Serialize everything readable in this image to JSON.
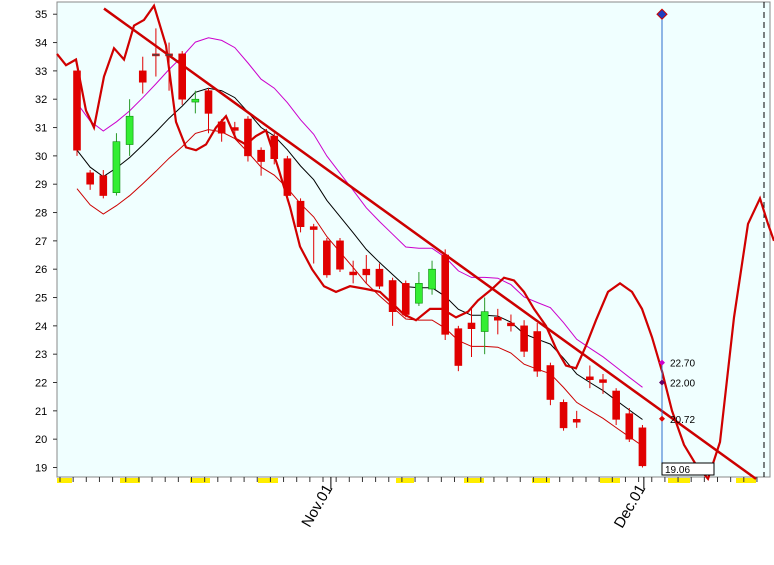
{
  "chart_data": {
    "type": "candlestick",
    "title": "",
    "xlabel": "",
    "ylabel": "",
    "ylim": [
      18.75,
      35.3
    ],
    "y_ticks": [
      19,
      20,
      21,
      22,
      23,
      24,
      25,
      26,
      27,
      28,
      29,
      30,
      31,
      32,
      33,
      34,
      35
    ],
    "x_tick_labels": [
      "Nov.01",
      "Dec.01"
    ],
    "grid": false,
    "colors": {
      "plot_bg": "#f0ffff",
      "bear": "#e00000",
      "bull": "#33ee33",
      "doji": "#444444",
      "envelope_upper": "#cc00cc",
      "envelope_lower": "#cc0000",
      "moving_average": "#000000",
      "cycle_line": "#d00000",
      "trendline": "#cc0000",
      "marker_line": "#2b6dcc",
      "marker": "#1f3fbf",
      "axis_highlight": "#ffee00"
    },
    "candles": [
      {
        "date": "Oct.06",
        "open": 33.0,
        "high": 33.0,
        "low": 30.0,
        "close": 30.2
      },
      {
        "date": "Oct.07",
        "open": 29.4,
        "high": 29.5,
        "low": 28.8,
        "close": 29.0
      },
      {
        "date": "Oct.08",
        "open": 29.3,
        "high": 29.5,
        "low": 28.5,
        "close": 28.6
      },
      {
        "date": "Oct.09",
        "open": 28.7,
        "high": 30.8,
        "low": 28.6,
        "close": 30.5
      },
      {
        "date": "Oct.10",
        "open": 30.4,
        "high": 32.0,
        "low": 30.0,
        "close": 31.4
      },
      {
        "date": "Oct.14",
        "open": 33.0,
        "high": 33.5,
        "low": 32.2,
        "close": 32.6
      },
      {
        "date": "Oct.15",
        "open": 33.6,
        "high": 34.5,
        "low": 32.8,
        "close": 33.6
      },
      {
        "date": "Oct.16",
        "open": 33.6,
        "high": 34.0,
        "low": 32.3,
        "close": 33.6
      },
      {
        "date": "Oct.17",
        "open": 33.6,
        "high": 33.7,
        "low": 31.8,
        "close": 32.0
      },
      {
        "date": "Oct.20",
        "open": 31.9,
        "high": 32.3,
        "low": 31.5,
        "close": 32.0
      },
      {
        "date": "Oct.21",
        "open": 32.3,
        "high": 32.4,
        "low": 30.8,
        "close": 31.5
      },
      {
        "date": "Oct.22",
        "open": 31.2,
        "high": 31.3,
        "low": 30.5,
        "close": 30.8
      },
      {
        "date": "Oct.23",
        "open": 31.0,
        "high": 31.2,
        "low": 30.7,
        "close": 30.9
      },
      {
        "date": "Oct.24",
        "open": 31.3,
        "high": 31.4,
        "low": 29.8,
        "close": 30.0
      },
      {
        "date": "Oct.27",
        "open": 30.2,
        "high": 30.3,
        "low": 29.3,
        "close": 29.8
      },
      {
        "date": "Oct.28",
        "open": 30.7,
        "high": 30.8,
        "low": 29.7,
        "close": 29.9
      },
      {
        "date": "Oct.29",
        "open": 29.9,
        "high": 30.0,
        "low": 28.4,
        "close": 28.6
      },
      {
        "date": "Oct.30",
        "open": 28.4,
        "high": 28.5,
        "low": 27.3,
        "close": 27.5
      },
      {
        "date": "Oct.31",
        "open": 27.5,
        "high": 27.6,
        "low": 26.2,
        "close": 27.4
      },
      {
        "date": "Nov.03",
        "open": 27.0,
        "high": 27.1,
        "low": 25.7,
        "close": 25.8
      },
      {
        "date": "Nov.05",
        "open": 27.0,
        "high": 27.1,
        "low": 25.9,
        "close": 26.0
      },
      {
        "date": "Nov.06",
        "open": 25.9,
        "high": 26.3,
        "low": 25.5,
        "close": 25.8
      },
      {
        "date": "Nov.07",
        "open": 26.0,
        "high": 26.5,
        "low": 25.5,
        "close": 25.8
      },
      {
        "date": "Nov.10",
        "open": 26.0,
        "high": 26.2,
        "low": 25.3,
        "close": 25.4
      },
      {
        "date": "Nov.11",
        "open": 25.6,
        "high": 25.7,
        "low": 24.0,
        "close": 24.5
      },
      {
        "date": "Nov.13",
        "open": 25.5,
        "high": 25.6,
        "low": 24.3,
        "close": 24.4
      },
      {
        "date": "Nov.14",
        "open": 24.8,
        "high": 25.9,
        "low": 24.7,
        "close": 25.5
      },
      {
        "date": "Nov.17",
        "open": 25.3,
        "high": 26.3,
        "low": 25.1,
        "close": 26.0
      },
      {
        "date": "Nov.18",
        "open": 26.5,
        "high": 26.7,
        "low": 23.5,
        "close": 23.7
      },
      {
        "date": "Nov.19",
        "open": 23.9,
        "high": 24.0,
        "low": 22.4,
        "close": 22.6
      },
      {
        "date": "Nov.21",
        "open": 24.1,
        "high": 24.6,
        "low": 22.9,
        "close": 23.9
      },
      {
        "date": "Nov.24",
        "open": 23.8,
        "high": 25.0,
        "low": 23.0,
        "close": 24.5
      },
      {
        "date": "Nov.25",
        "open": 24.3,
        "high": 24.6,
        "low": 23.7,
        "close": 24.2
      },
      {
        "date": "Nov.26",
        "open": 24.1,
        "high": 24.4,
        "low": 23.8,
        "close": 24.0
      },
      {
        "date": "Nov.27",
        "open": 24.0,
        "high": 24.2,
        "low": 22.9,
        "close": 23.1
      },
      {
        "date": "Nov.28",
        "open": 23.8,
        "high": 24.1,
        "low": 22.2,
        "close": 22.4
      },
      {
        "date": "Nov.29",
        "open": 22.6,
        "high": 22.7,
        "low": 21.2,
        "close": 21.4
      },
      {
        "date": "Nov.30",
        "open": 21.3,
        "high": 21.4,
        "low": 20.3,
        "close": 20.4
      },
      {
        "date": "Dec.01",
        "open": 20.7,
        "high": 21.0,
        "low": 20.4,
        "close": 20.6
      },
      {
        "date": "Dec.02",
        "open": 22.2,
        "high": 22.6,
        "low": 21.8,
        "close": 22.1
      },
      {
        "date": "Dec.03",
        "open": 22.1,
        "high": 22.3,
        "low": 21.6,
        "close": 22.0
      },
      {
        "date": "Dec.04",
        "open": 21.7,
        "high": 21.8,
        "low": 20.5,
        "close": 20.7
      },
      {
        "date": "Dec.05",
        "open": 20.9,
        "high": 21.1,
        "low": 19.9,
        "close": 20.0
      },
      {
        "date": "Dec.08",
        "open": 20.4,
        "high": 20.5,
        "low": 19.0,
        "close": 19.06
      }
    ],
    "price_labels": [
      {
        "label": "22.70",
        "value": 22.7
      },
      {
        "label": "22.00",
        "value": 22.0
      },
      {
        "label": "20.72",
        "value": 20.72
      }
    ],
    "last_value_label": "19.06",
    "marker_value": 35.0,
    "trendline": {
      "from_value": 35.2,
      "to_value": 18.6
    }
  }
}
